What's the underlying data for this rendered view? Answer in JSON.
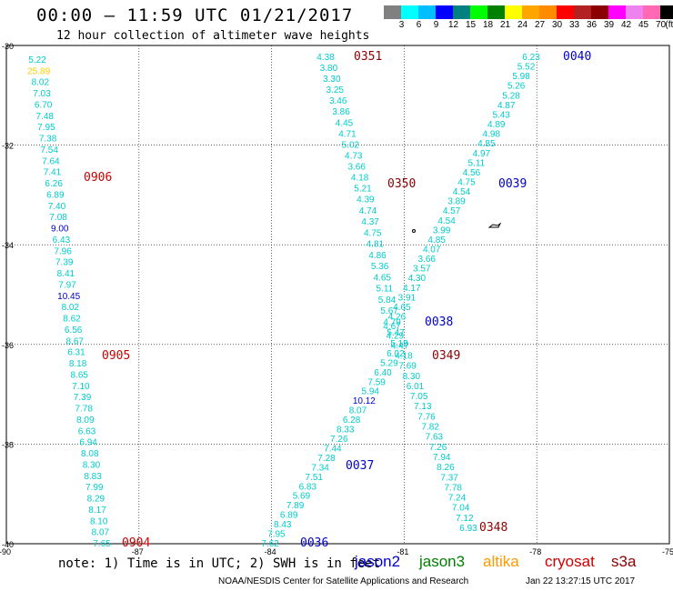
{
  "title": "00:00 – 11:59 UTC 01/21/2017",
  "subtitle": "12 hour collection of altimeter wave heights",
  "colorbar": {
    "labels": [
      "3",
      "6",
      "9",
      "12",
      "15",
      "18",
      "21",
      "24",
      "27",
      "30",
      "33",
      "36",
      "39",
      "42",
      "45",
      "70"
    ],
    "unit": "(ft)",
    "colors": [
      "#808080",
      "#00ffff",
      "#00bfff",
      "#0000ff",
      "#008080",
      "#00ff00",
      "#008000",
      "#ffff00",
      "#ffa500",
      "#ff8c00",
      "#ff0000",
      "#b22222",
      "#8b0000",
      "#ff00ff",
      "#ee82ee",
      "#ff69b4",
      "#000000"
    ]
  },
  "axes": {
    "lat_ticks": [
      "-30",
      "-32",
      "-34",
      "-36",
      "-38",
      "-40"
    ],
    "lon_ticks": [
      "-90",
      "-87",
      "-84",
      "-81",
      "-78",
      "-75"
    ],
    "lat_range": [
      -40,
      -30
    ],
    "lon_range": [
      -90,
      -75
    ]
  },
  "chart_data": {
    "type": "scatter",
    "tracks": [
      {
        "mission": "jason2",
        "time_labels": [
          {
            "text": "0906",
            "color": "#cc0000"
          },
          {
            "text": "0905",
            "color": "#cc0000"
          },
          {
            "text": "0904",
            "color": "#cc0000"
          }
        ],
        "values": [
          "5.22",
          "25.89",
          "8.02",
          "7.03",
          "6.70",
          "7.48",
          "7.95",
          "7.38",
          "7.54",
          "7.64",
          "7.41",
          "6.26",
          "6.89",
          "7.40",
          "7.08",
          "9.00",
          "6.43",
          "7.96",
          "7.39",
          "8.41",
          "7.97",
          "10.45",
          "8.02",
          "8.62",
          "6.56",
          "8.67",
          "6.31",
          "8.18",
          "8.65",
          "7.10",
          "7.39",
          "7.78",
          "8.09",
          "6.63",
          "6.94",
          "8.08",
          "8.30",
          "8.83",
          "7.99",
          "8.29",
          "8.17",
          "8.10",
          "8.07",
          "7.65"
        ]
      },
      {
        "mission": "track-0351",
        "time_labels": [
          {
            "text": "0351",
            "color": "#8b0000"
          },
          {
            "text": "0350",
            "color": "#8b0000"
          },
          {
            "text": "0349",
            "color": "#8b0000"
          },
          {
            "text": "0348",
            "color": "#8b0000"
          }
        ],
        "values": [
          "4.38",
          "3.80",
          "3.30",
          "3.25",
          "3.46",
          "3.86",
          "4.45",
          "4.71",
          "5.02",
          "4.73",
          "3.66",
          "4.18",
          "5.21",
          "4.39",
          "4.74",
          "4.37",
          "4.75",
          "4.81",
          "4.86",
          "5.36",
          "4.65",
          "5.11",
          "5.84",
          "5.67",
          "4.79",
          "5.47",
          "5.18",
          "6.02",
          "5.29",
          "6.40",
          "7.59",
          "5.94",
          "10.12",
          "8.07",
          "6.28",
          "8.33",
          "7.26",
          "7.44",
          "7.28",
          "7.34",
          "7.51",
          "6.83",
          "5.69",
          "7.89",
          "6.89",
          "8.43",
          "7.95",
          "7.62"
        ]
      },
      {
        "mission": "track-0040",
        "time_labels": [
          {
            "text": "0040",
            "color": "#0000cc"
          },
          {
            "text": "0039",
            "color": "#0000cc"
          },
          {
            "text": "0038",
            "color": "#0000cc"
          },
          {
            "text": "0037",
            "color": "#0000cc"
          },
          {
            "text": "0036",
            "color": "#0000cc"
          }
        ],
        "values": [
          "6.23",
          "5.52",
          "5.98",
          "5.26",
          "5.28",
          "4.87",
          "5.43",
          "4.89",
          "4.98",
          "4.85",
          "4.97",
          "5.11",
          "4.56",
          "4.75",
          "4.54",
          "3.89",
          "4.57",
          "4.54",
          "3.99",
          "4.85",
          "4.07",
          "3.66",
          "3.57",
          "4.30",
          "4.17",
          "3.91",
          "4.65",
          "4.26",
          "4.67",
          "4.29",
          "4.47",
          "4.18",
          "7.69",
          "8.30",
          "6.01",
          "7.05",
          "7.13",
          "7.76",
          "7.82",
          "7.63",
          "7.26",
          "7.94",
          "8.26",
          "7.37",
          "7.78",
          "7.24",
          "7.04",
          "7.12",
          "6.93"
        ]
      }
    ]
  },
  "legend": {
    "note": "note:  1) Time is in UTC; 2) SWH is in feet",
    "missions": [
      {
        "name": "jason2",
        "color": "#0000cc"
      },
      {
        "name": "jason3",
        "color": "#008000"
      },
      {
        "name": "altika",
        "color": "#ff9900"
      },
      {
        "name": "cryosat",
        "color": "#cc0000"
      },
      {
        "name": "s3a",
        "color": "#8b0000"
      }
    ]
  },
  "footer": {
    "org": "NOAA/NESDIS Center for Satellite Applications and Research",
    "timestamp": "Jan 22 13:27:15 UTC 2017"
  }
}
